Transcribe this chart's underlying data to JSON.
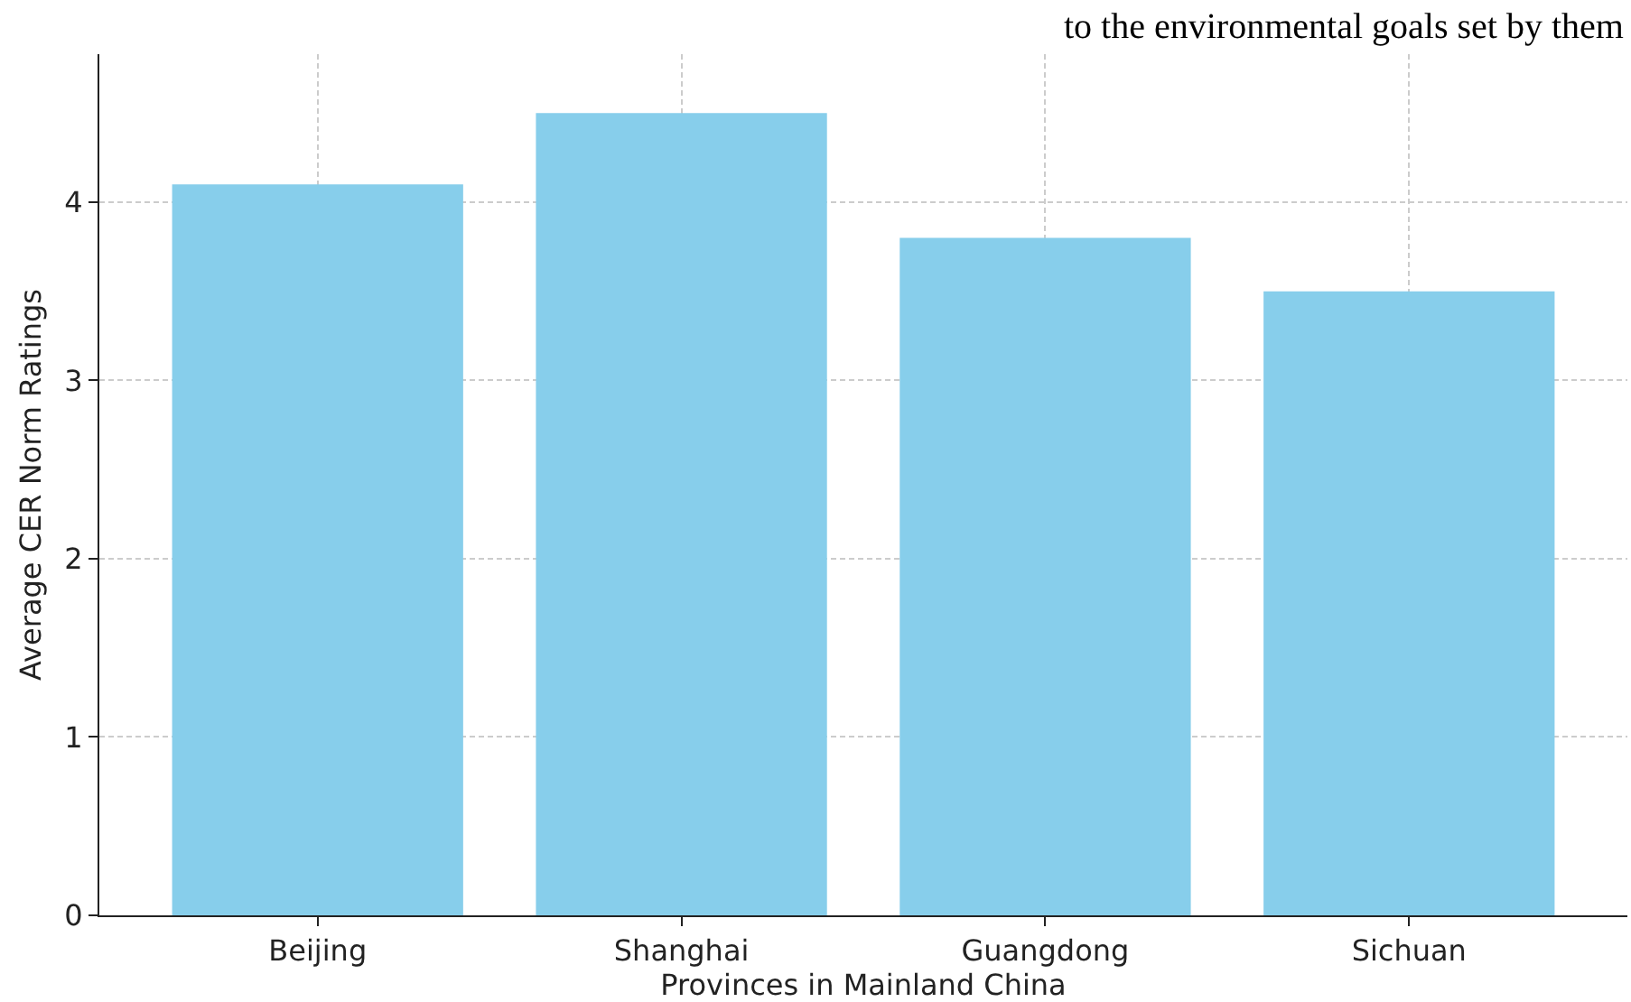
{
  "chart_data": {
    "type": "bar",
    "xlabel": "Provinces in Mainland China",
    "ylabel": "Average CER Norm Ratings",
    "categories": [
      "Beijing",
      "Shanghai",
      "Guangdong",
      "Sichuan"
    ],
    "values": [
      4.1,
      4.5,
      3.8,
      3.5
    ],
    "color": "#87ceeb",
    "ylim": [
      0,
      4.83
    ],
    "yticks": [
      0,
      1,
      2,
      3,
      4
    ],
    "grid": true,
    "annotations": [
      "to the environmental goals set by them"
    ]
  }
}
